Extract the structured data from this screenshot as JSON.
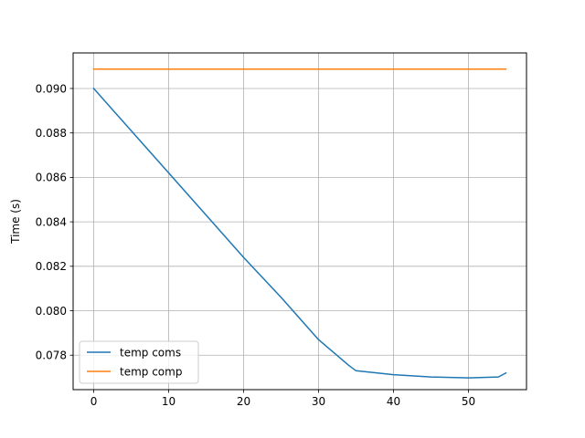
{
  "chart_data": {
    "type": "line",
    "title": "",
    "xlabel": "",
    "ylabel": "Time (s)",
    "xlim": [
      -2.75,
      57.75
    ],
    "ylim": [
      0.07645,
      0.0916
    ],
    "xticks": [
      0,
      10,
      20,
      30,
      40,
      50
    ],
    "yticks": [
      0.078,
      0.08,
      0.082,
      0.084,
      0.086,
      0.088,
      0.09
    ],
    "ytick_labels": [
      "0.078",
      "0.080",
      "0.082",
      "0.084",
      "0.086",
      "0.088",
      "0.090"
    ],
    "grid": true,
    "legend_position": "lower-left",
    "series": [
      {
        "name": "temp coms",
        "color": "#1f77b4",
        "x": [
          0,
          5,
          10,
          15,
          20,
          25,
          30,
          34,
          35,
          40,
          45,
          50,
          54,
          55
        ],
        "y": [
          0.09,
          0.0881,
          0.0862,
          0.0843,
          0.0824,
          0.0806,
          0.0787,
          0.07755,
          0.0773,
          0.07712,
          0.07702,
          0.07698,
          0.07702,
          0.0772
        ]
      },
      {
        "name": "temp comp",
        "color": "#ff7f0e",
        "x": [
          0,
          55
        ],
        "y": [
          0.09087,
          0.09087
        ]
      }
    ]
  }
}
